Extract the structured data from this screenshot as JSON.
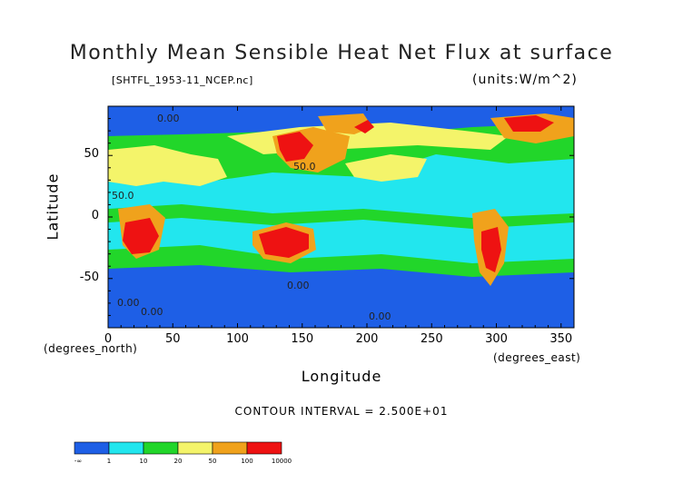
{
  "chart_data": {
    "type": "heatmap",
    "title": "Monthly Mean Sensible Heat Net Flux at surface",
    "subtitle_left": "[SHTFL_1953-11_NCEP.nc]",
    "subtitle_right": "(units:W/m^2)",
    "xlabel": "Longitude",
    "ylabel": "Latitude",
    "x_unit": "(degrees_east)",
    "y_unit": "(degrees_north)",
    "xlim": [
      0,
      360
    ],
    "ylim": [
      -90,
      90
    ],
    "x_ticks": [
      "0",
      "50",
      "100",
      "150",
      "200",
      "250",
      "300",
      "350"
    ],
    "x_tick_values": [
      0,
      50,
      100,
      150,
      200,
      250,
      300,
      350
    ],
    "y_ticks": [
      "50",
      "0",
      "-50"
    ],
    "y_tick_values": [
      50,
      0,
      -50
    ],
    "contour_interval": "CONTOUR INTERVAL = 2.500E+01",
    "contour_labels": [
      "0.00",
      "50.0",
      "50.0",
      "0.00",
      "0.00",
      "0.00",
      "0.00"
    ],
    "colorbar": {
      "bins": [
        {
          "color": "#1e5fe6",
          "low_label": "-∞"
        },
        {
          "color": "#22e6ee",
          "low_label": "1"
        },
        {
          "color": "#22d62a",
          "low_label": "10"
        },
        {
          "color": "#f4f46a",
          "low_label": "20"
        },
        {
          "color": "#f0a21c",
          "low_label": "50"
        },
        {
          "color": "#ee1212",
          "low_label": "100"
        }
      ],
      "top_label": "10000"
    }
  }
}
